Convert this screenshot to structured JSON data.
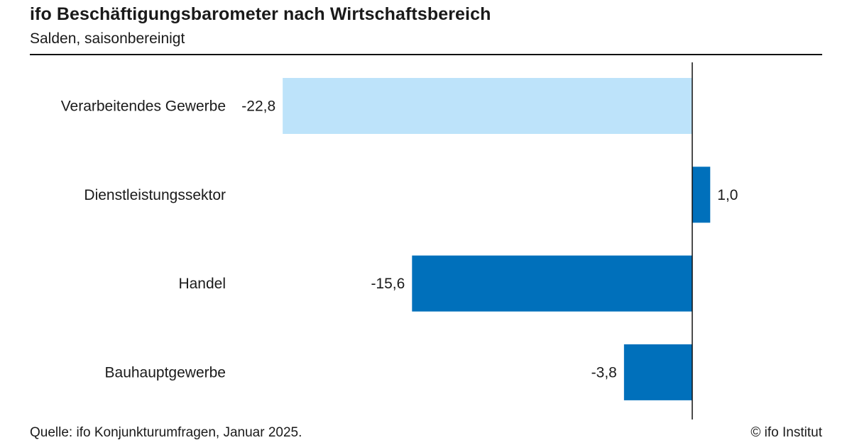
{
  "header": {
    "title": "ifo Beschäftigungsbarometer nach Wirtschaftsbereich",
    "subtitle": "Salden, saisonbereinigt"
  },
  "footer": {
    "source": "Quelle: ifo Konjunkturumfragen, Januar 2025.",
    "copyright": "© ifo Institut"
  },
  "chart_data": {
    "type": "bar",
    "orientation": "horizontal",
    "title": "ifo Beschäftigungsbarometer nach Wirtschaftsbereich",
    "subtitle": "Salden, saisonbereinigt",
    "categories": [
      "Verarbeitendes Gewerbe",
      "Dienstleistungssektor",
      "Handel",
      "Bauhauptgewerbe"
    ],
    "values": [
      -22.8,
      1.0,
      -15.6,
      -3.8
    ],
    "value_labels": [
      "-22,8",
      "1,0",
      "-15,6",
      "-3,8"
    ],
    "bar_colors": [
      "#bde3fa",
      "#0070bb",
      "#0070bb",
      "#0070bb"
    ],
    "xlim": [
      -34.2,
      10
    ],
    "grid": false,
    "legend": "none"
  }
}
